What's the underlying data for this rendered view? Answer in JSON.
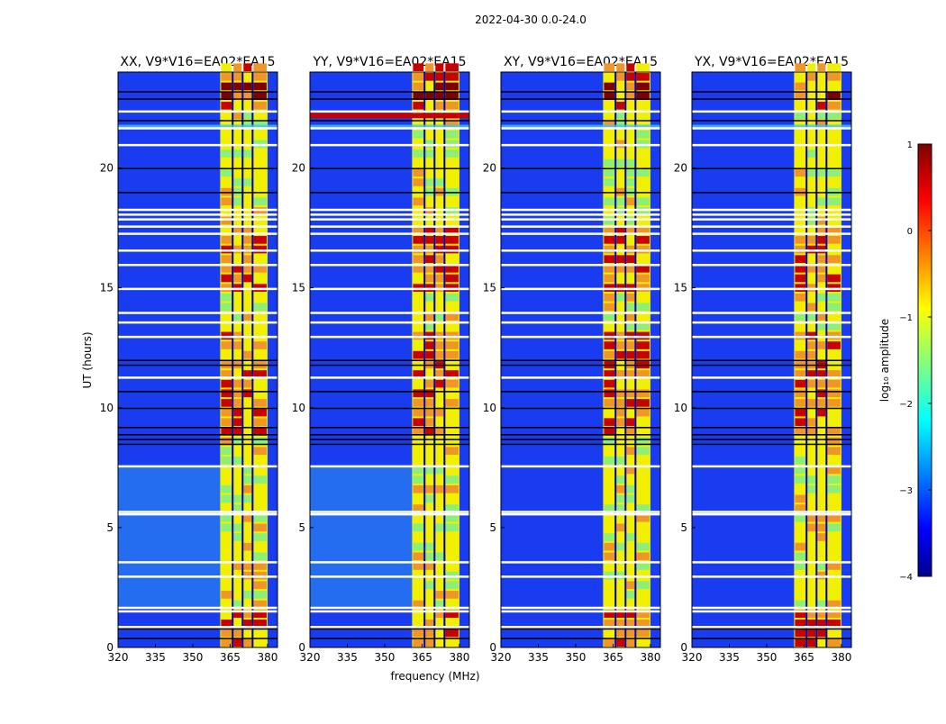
{
  "figure_title": "2022-04-30 0.0-24.0",
  "xlabel": "frequency (MHz)",
  "ylabel": "UT (hours)",
  "chart_data": {
    "type": "heatmap",
    "title": "2022-04-30 0.0-24.0",
    "xlabel": "frequency (MHz)",
    "ylabel": "UT (hours)",
    "xlim": [
      320,
      384
    ],
    "ylim": [
      0,
      24
    ],
    "xticks": [
      320,
      335,
      350,
      365,
      380
    ],
    "yticks": [
      0,
      5,
      10,
      15,
      20
    ],
    "panels": [
      {
        "name": "XX",
        "title": "XX, V9*V16=EA02*EA15"
      },
      {
        "name": "YY",
        "title": "YY, V9*V16=EA02*EA15"
      },
      {
        "name": "XY",
        "title": "XY, V9*V16=EA02*EA15"
      },
      {
        "name": "YX",
        "title": "YX, V9*V16=EA02*EA15"
      }
    ],
    "strong_band_mhz": [
      361,
      380
    ],
    "colorbar": {
      "label": "log₁₀ amplitude",
      "range": [
        -4,
        1
      ],
      "ticks": [
        1,
        0,
        -1,
        -2,
        -3,
        -4
      ],
      "colormap": "jet"
    }
  },
  "colors": {
    "dark_blue": "#0000b4",
    "blue": "#1a3cf0",
    "cyan": "#3cc8f0",
    "green": "#8cf078",
    "yellow": "#f0f000",
    "orange": "#f09628",
    "red": "#c80000",
    "dark_red": "#800000"
  }
}
